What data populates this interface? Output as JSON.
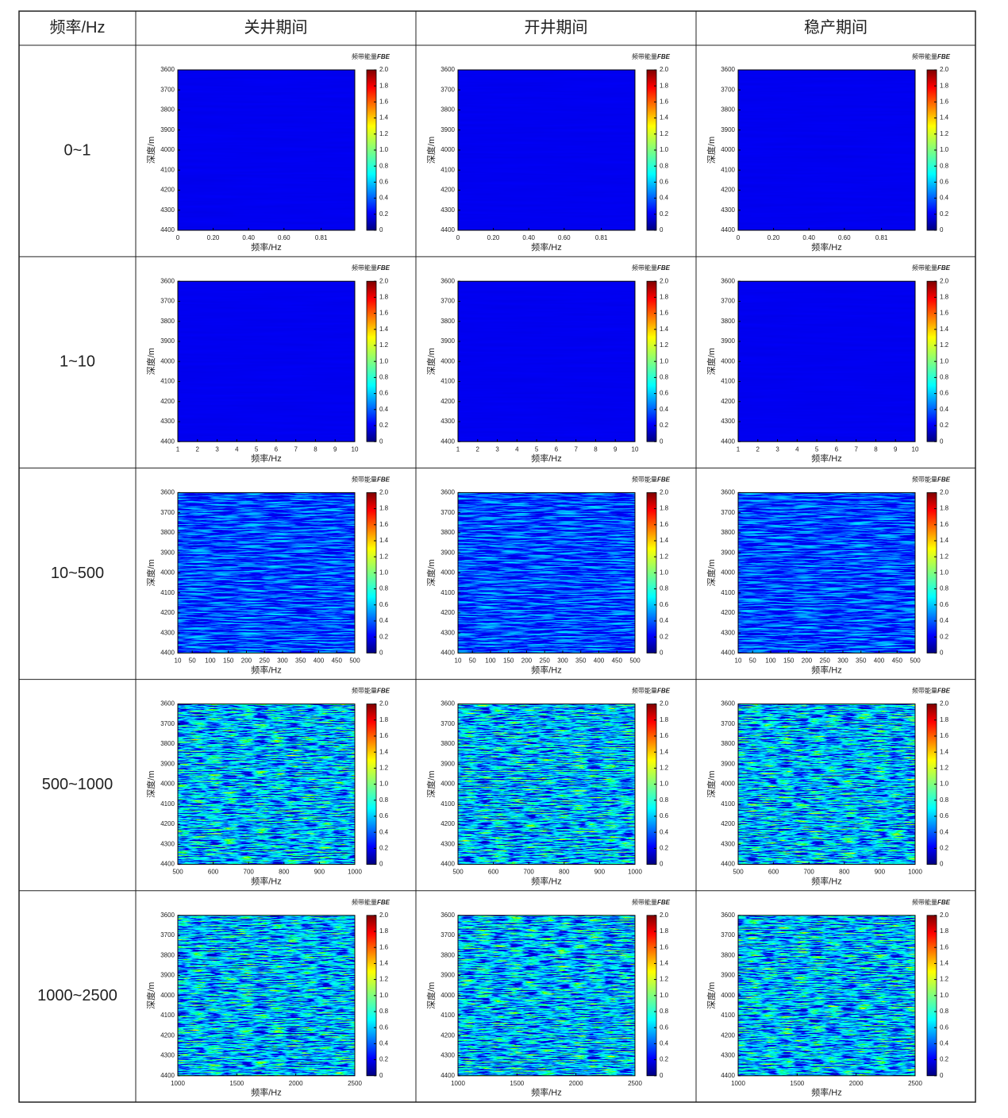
{
  "table": {
    "header": [
      "频率/Hz",
      "关井期间",
      "开井期间",
      "稳产期间"
    ],
    "rows": [
      {
        "band": "0~1",
        "xlim": [
          0,
          1
        ],
        "xticks": [
          0,
          {
            "value": 0.2,
            "label": "0.20"
          },
          {
            "value": 0.4,
            "label": "0.40"
          },
          {
            "value": 0.6,
            "label": "0.60"
          },
          0.81
        ]
      },
      {
        "band": "1~10",
        "xlim": [
          1,
          10
        ],
        "xticks": [
          1,
          2,
          3,
          4,
          5,
          6,
          7,
          8,
          9,
          10
        ]
      },
      {
        "band": "10~500",
        "xlim": [
          10,
          500
        ],
        "xticks": [
          10,
          50,
          100,
          150,
          200,
          250,
          300,
          350,
          400,
          450,
          500
        ]
      },
      {
        "band": "500~1000",
        "xlim": [
          500,
          1000
        ],
        "xticks": [
          500,
          600,
          700,
          800,
          900,
          1000
        ]
      },
      {
        "band": "1000~2500",
        "xlim": [
          1000,
          2500
        ],
        "xticks": [
          1000,
          1500,
          2000,
          2500
        ]
      }
    ]
  },
  "panel": {
    "xlabel": "频率/Hz",
    "ylabel": "深度/m",
    "ylim": [
      3600,
      4400
    ],
    "yticks": [
      3600,
      3700,
      3800,
      3900,
      4000,
      4100,
      4200,
      4300,
      4400
    ],
    "colorbar_title": "频带能量",
    "colorbar_var": "FBE",
    "clim": [
      0,
      2
    ],
    "cticks": [
      0,
      0.2,
      0.4,
      0.6,
      0.8,
      {
        "value": 1,
        "label": "1.0"
      },
      1.2,
      1.4,
      1.6,
      1.8,
      {
        "value": 2,
        "label": "2.0"
      }
    ]
  }
}
